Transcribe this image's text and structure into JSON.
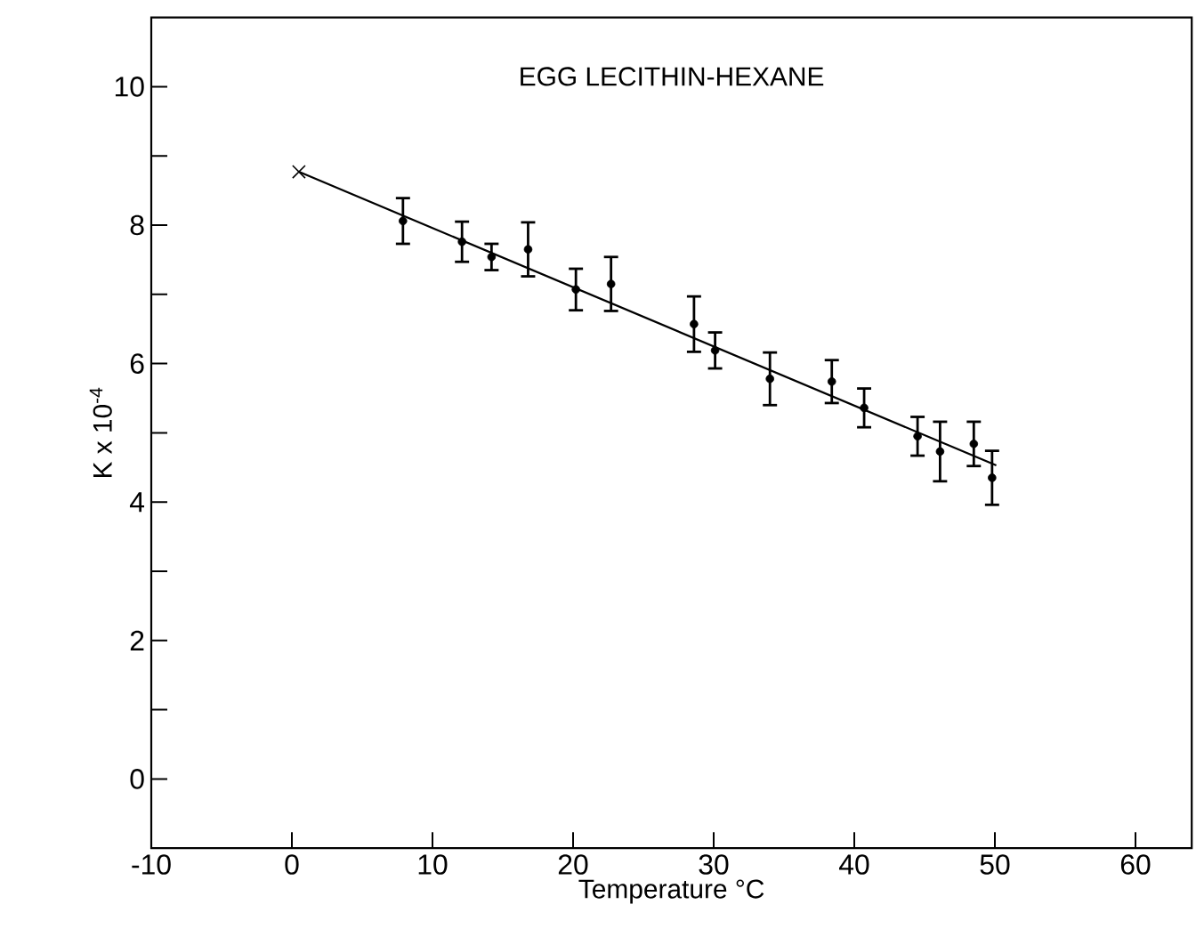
{
  "chart_data": {
    "type": "scatter",
    "title": "EGG LECITHIN-HEXANE",
    "xlabel": "Temperature   °C",
    "ylabel": "K x 10$^{-4}$",
    "xlim": [
      -10,
      64
    ],
    "ylim": [
      -1,
      11
    ],
    "xticks": [
      -10,
      0,
      10,
      20,
      30,
      40,
      50,
      60
    ],
    "yticks": [
      0,
      {
        "value": 1,
        "label": null
      },
      2,
      {
        "value": 3,
        "label": null
      },
      4,
      {
        "value": 5,
        "label": null
      },
      6,
      {
        "value": 7,
        "label": null
      },
      8,
      {
        "value": 9,
        "label": null
      },
      10
    ],
    "series": [
      {
        "marker": "circle",
        "color": "#000000",
        "x": [
          7.9,
          12.1,
          14.2,
          16.8,
          20.2,
          22.7,
          28.6,
          30.1,
          34.0,
          38.4,
          40.7,
          44.5,
          46.1,
          48.5,
          49.8
        ],
        "values": [
          8.06,
          7.76,
          7.54,
          7.65,
          7.07,
          7.15,
          6.57,
          6.19,
          5.78,
          5.74,
          5.36,
          4.95,
          4.73,
          4.84,
          4.35
        ],
        "errors": [
          0.33,
          0.29,
          0.19,
          0.39,
          0.3,
          0.39,
          0.4,
          0.26,
          0.38,
          0.31,
          0.28,
          0.28,
          0.43,
          0.32,
          0.39
        ]
      },
      {
        "marker": "cross",
        "color": "#000000",
        "x": [
          0.5
        ],
        "values": [
          8.77
        ]
      },
      {
        "type": "line",
        "marker": "none",
        "color": "#000000",
        "x": [
          0.5,
          50.1
        ],
        "values": [
          8.77,
          4.53
        ]
      }
    ]
  }
}
